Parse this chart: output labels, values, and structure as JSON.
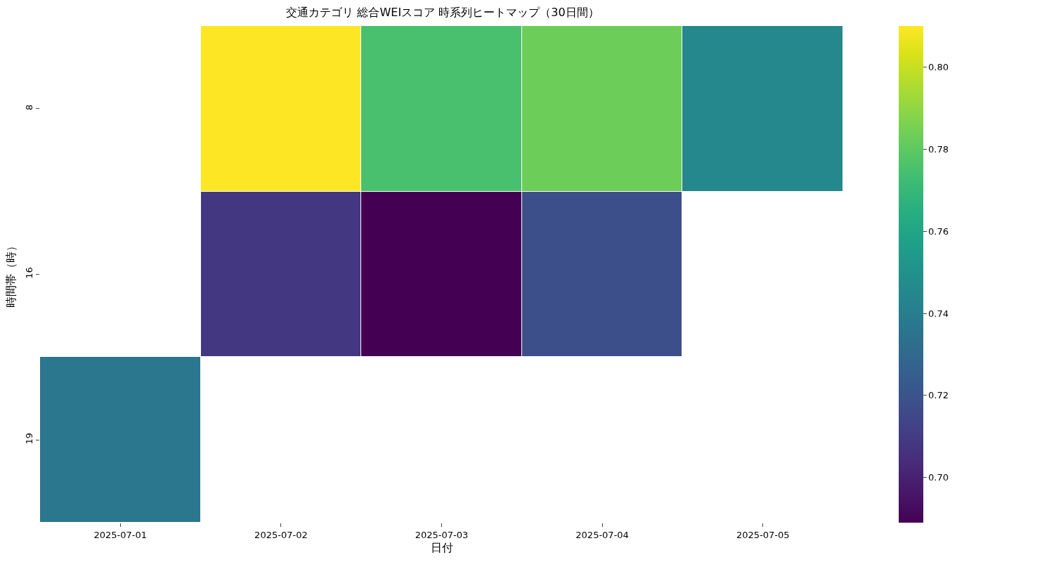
{
  "chart_data": {
    "type": "heatmap",
    "title": "交通カテゴリ 総合WEIスコア 時系列ヒートマップ（30日間）",
    "xlabel": "日付",
    "ylabel": "時間帯（時）",
    "categories": [
      "2025-07-01",
      "2025-07-02",
      "2025-07-03",
      "2025-07-04",
      "2025-07-05"
    ],
    "y_categories": [
      "8",
      "16",
      "19"
    ],
    "cells": [
      [
        null,
        0.81,
        0.775,
        0.783,
        0.745
      ],
      [
        null,
        0.708,
        0.689,
        0.718,
        null
      ],
      [
        0.737,
        null,
        null,
        null,
        null
      ]
    ],
    "clim": [
      0.689,
      0.81
    ],
    "cticks": [
      {
        "value": 0.7,
        "label": "0.70"
      },
      0.72,
      0.74,
      0.76,
      0.78,
      {
        "value": 0.8,
        "label": "0.80"
      }
    ]
  }
}
